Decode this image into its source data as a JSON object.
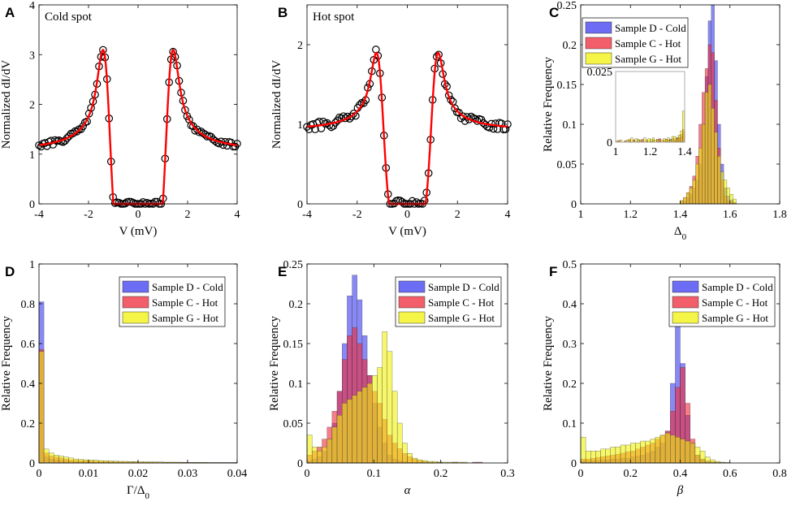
{
  "figure": {
    "colors": {
      "blue": "#3b3bf0",
      "red": "#ee2838",
      "yellow": "#f2f20a",
      "fit": "#ff0000",
      "marker": "#000000"
    }
  },
  "chart_data": [
    {
      "panel": "A",
      "type": "scatter",
      "title": "Cold spot",
      "xlabel": "V (mV)",
      "ylabel": "Normalized dI/dV",
      "xlim": [
        -4,
        4
      ],
      "ylim": [
        0,
        4
      ],
      "xticks": [
        -4,
        -2,
        0,
        2,
        4
      ],
      "yticks": [
        0,
        1,
        2,
        3,
        4
      ],
      "model": {
        "delta": 1.35,
        "gamma": 0.05,
        "background": 1.18,
        "noise": 0.05,
        "peak_height": 3.0,
        "n_points": 100
      },
      "series": [
        {
          "name": "data",
          "marker": "circle"
        },
        {
          "name": "fit",
          "style": "line"
        }
      ]
    },
    {
      "panel": "B",
      "type": "scatter",
      "title": "Hot spot",
      "xlabel": "V (mV)",
      "ylabel": "Normalized dI/dV",
      "xlim": [
        -4,
        4
      ],
      "ylim": [
        0,
        2.5
      ],
      "xticks": [
        -4,
        -2,
        0,
        2,
        4
      ],
      "yticks": [
        0,
        1,
        2
      ],
      "model": {
        "delta": 1.15,
        "gamma": 0.05,
        "background": 0.97,
        "noise": 0.05,
        "peak_height": 1.82,
        "n_points": 100
      },
      "series": [
        {
          "name": "data",
          "marker": "circle"
        },
        {
          "name": "fit",
          "style": "line"
        }
      ]
    },
    {
      "panel": "C",
      "type": "bar",
      "xlabel": "Δ",
      "xlabel_sub": "0",
      "ylabel": "Relative Frequency",
      "xlim": [
        1,
        1.8
      ],
      "ylim": [
        0,
        0.25
      ],
      "xticks": [
        1,
        1.2,
        1.4,
        1.6,
        1.8
      ],
      "yticks": [
        0,
        0.05,
        0.1,
        0.15,
        0.2,
        0.25
      ],
      "bin_start": 1.4,
      "bin_width": 0.0125,
      "series": [
        {
          "name": "Sample D - Cold",
          "color": "blue",
          "values": [
            0.002,
            0.004,
            0.008,
            0.012,
            0.02,
            0.03,
            0.05,
            0.1,
            0.16,
            0.23,
            0.25,
            0.18,
            0.1,
            0.05,
            0.02,
            0.01,
            0.005,
            0.002
          ]
        },
        {
          "name": "Sample C - Hot",
          "color": "red",
          "values": [
            0.004,
            0.008,
            0.014,
            0.022,
            0.035,
            0.06,
            0.1,
            0.14,
            0.17,
            0.2,
            0.19,
            0.13,
            0.07,
            0.03,
            0.01,
            0.004,
            0.002,
            0.001
          ]
        },
        {
          "name": "Sample G - Hot",
          "color": "yellow",
          "values": [
            0.004,
            0.008,
            0.014,
            0.02,
            0.03,
            0.05,
            0.07,
            0.1,
            0.14,
            0.15,
            0.12,
            0.09,
            0.06,
            0.04,
            0.03,
            0.02,
            0.012,
            0.006
          ]
        }
      ],
      "inset": {
        "xlim": [
          1,
          1.4
        ],
        "ylim": [
          0,
          0.025
        ],
        "xticks": [
          1,
          1.2,
          1.4
        ],
        "yticks": [
          0,
          0.025
        ],
        "bin_start": 1.0,
        "bin_width": 0.0125,
        "series": [
          {
            "name": "Sample D - Cold",
            "color": "blue",
            "values": [
              0,
              0,
              0,
              0,
              0,
              0,
              0.0005,
              0,
              0,
              0,
              0.0008,
              0,
              0,
              0,
              0,
              0,
              0.0005,
              0,
              0,
              0.0008,
              0,
              0,
              0,
              0,
              0.0008,
              0.001,
              0,
              0.001,
              0.0012,
              0.0015,
              0.002,
              0.0035
            ]
          },
          {
            "name": "Sample C - Hot",
            "color": "red",
            "values": [
              0,
              0.0006,
              0,
              0,
              0.0005,
              0,
              0.0008,
              0,
              0.0008,
              0,
              0,
              0.0005,
              0.001,
              0,
              0.0005,
              0,
              0,
              0.0008,
              0,
              0.001,
              0.0012,
              0,
              0.0006,
              0.001,
              0.0008,
              0,
              0.0012,
              0.0006,
              0.0015,
              0.0018,
              0.0028,
              0.0045
            ]
          },
          {
            "name": "Sample G - Hot",
            "color": "yellow",
            "values": [
              0.0005,
              0,
              0.0008,
              0,
              0,
              0.0008,
              0.001,
              0.0015,
              0,
              0.0012,
              0.001,
              0.0008,
              0,
              0.0015,
              0.0008,
              0.0012,
              0.001,
              0.0015,
              0.0008,
              0.001,
              0,
              0.0008,
              0.0012,
              0.001,
              0.0015,
              0.0008,
              0.002,
              0.002,
              0.0012,
              0.0025,
              0.004,
              0.011
            ]
          }
        ]
      }
    },
    {
      "panel": "D",
      "type": "bar",
      "xlabel": "Γ/Δ",
      "xlabel_sub": "0",
      "ylabel": "Relative Frequency",
      "xlim": [
        0,
        0.04
      ],
      "ylim": [
        0,
        1
      ],
      "xticks": [
        0,
        0.01,
        0.02,
        0.03,
        0.04
      ],
      "yticks": [
        0,
        0.2,
        0.4,
        0.6,
        0.8,
        1
      ],
      "bin_start": 0,
      "bin_width": 0.001,
      "series": [
        {
          "name": "Sample D - Cold",
          "color": "blue",
          "values": [
            0.81,
            0.03,
            0.02,
            0.015,
            0.012,
            0.01,
            0.008,
            0.007,
            0.006,
            0.005,
            0.005,
            0.004,
            0.004,
            0.003,
            0.003,
            0.003,
            0.002,
            0.002,
            0.002,
            0.002,
            0.002,
            0.002,
            0.002,
            0.001,
            0.001,
            0.001,
            0.001,
            0.001,
            0.001,
            0.001,
            0.001,
            0.001,
            0.001,
            0.001,
            0.001,
            0.001,
            0.001,
            0.001,
            0.001,
            0.001
          ]
        },
        {
          "name": "Sample C - Hot",
          "color": "red",
          "values": [
            0.57,
            0.05,
            0.035,
            0.03,
            0.025,
            0.02,
            0.015,
            0.013,
            0.012,
            0.011,
            0.01,
            0.009,
            0.008,
            0.008,
            0.007,
            0.006,
            0.006,
            0.005,
            0.005,
            0.005,
            0.004,
            0.004,
            0.004,
            0.004,
            0.003,
            0.003,
            0.003,
            0.003,
            0.003,
            0.003,
            0.002,
            0.002,
            0.002,
            0.002,
            0.002,
            0.002,
            0.002,
            0.002,
            0.002,
            0.002
          ]
        },
        {
          "name": "Sample G - Hot",
          "color": "yellow",
          "values": [
            0.56,
            0.07,
            0.05,
            0.04,
            0.035,
            0.03,
            0.025,
            0.02,
            0.018,
            0.016,
            0.015,
            0.014,
            0.012,
            0.011,
            0.01,
            0.009,
            0.008,
            0.008,
            0.007,
            0.007,
            0.006,
            0.006,
            0.005,
            0.005,
            0.005,
            0.004,
            0.004,
            0.004,
            0.004,
            0.003,
            0.003,
            0.003,
            0.003,
            0.003,
            0.002,
            0.002,
            0.002,
            0.002,
            0.002,
            0.002
          ]
        }
      ]
    },
    {
      "panel": "E",
      "type": "bar",
      "xlabel": "α",
      "ylabel": "Relative Frequency",
      "xlim": [
        0,
        0.3
      ],
      "ylim": [
        0,
        0.25
      ],
      "xticks": [
        0,
        0.1,
        0.2,
        0.3
      ],
      "yticks": [
        0,
        0.05,
        0.1,
        0.15,
        0.2,
        0.25
      ],
      "bin_start": 0,
      "bin_width": 0.0075,
      "series": [
        {
          "name": "Sample D - Cold",
          "color": "blue",
          "values": [
            0.003,
            0.005,
            0.008,
            0.015,
            0.03,
            0.05,
            0.09,
            0.15,
            0.21,
            0.236,
            0.205,
            0.16,
            0.11,
            0.075,
            0.045,
            0.025,
            0.01,
            0.005,
            0.003,
            0.002,
            0.001,
            0.001,
            0.001,
            0.001,
            0.001,
            0,
            0,
            0,
            0,
            0,
            0,
            0,
            0,
            0,
            0,
            0,
            0,
            0,
            0,
            0
          ]
        },
        {
          "name": "Sample C - Hot",
          "color": "red",
          "values": [
            0.01,
            0.015,
            0.02,
            0.03,
            0.045,
            0.065,
            0.09,
            0.13,
            0.16,
            0.17,
            0.15,
            0.13,
            0.11,
            0.09,
            0.075,
            0.055,
            0.035,
            0.025,
            0.018,
            0.012,
            0.008,
            0.005,
            0.003,
            0.002,
            0.001,
            0.001,
            0.001,
            0,
            0,
            0.001,
            0,
            0,
            0,
            0.001,
            0.001,
            0,
            0,
            0,
            0,
            0
          ]
        },
        {
          "name": "Sample G - Hot",
          "color": "yellow",
          "values": [
            0.035,
            0.02,
            0.015,
            0.02,
            0.03,
            0.045,
            0.06,
            0.075,
            0.08,
            0.085,
            0.09,
            0.095,
            0.1,
            0.11,
            0.12,
            0.165,
            0.14,
            0.09,
            0.05,
            0.025,
            0.012,
            0.006,
            0.004,
            0.003,
            0.002,
            0.002,
            0.001,
            0.001,
            0.001,
            0.001,
            0.001,
            0.001,
            0,
            0,
            0,
            0,
            0,
            0,
            0,
            0
          ]
        }
      ]
    },
    {
      "panel": "F",
      "type": "bar",
      "xlabel": "β",
      "ylabel": "Relative Frequency",
      "xlim": [
        0,
        0.8
      ],
      "ylim": [
        0,
        0.5
      ],
      "xticks": [
        0,
        0.2,
        0.4,
        0.6,
        0.8
      ],
      "yticks": [
        0,
        0.1,
        0.2,
        0.3,
        0.4,
        0.5
      ],
      "bin_start": 0,
      "bin_width": 0.02,
      "series": [
        {
          "name": "Sample D - Cold",
          "color": "blue",
          "values": [
            0.005,
            0.005,
            0.006,
            0.006,
            0.008,
            0.008,
            0.01,
            0.01,
            0.012,
            0.012,
            0.015,
            0.018,
            0.02,
            0.025,
            0.03,
            0.04,
            0.05,
            0.08,
            0.2,
            0.36,
            0.25,
            0.12,
            0.05,
            0.02,
            0.01,
            0.005,
            0.003,
            0.002,
            0.001,
            0.001,
            0,
            0,
            0,
            0,
            0,
            0,
            0,
            0,
            0,
            0
          ]
        },
        {
          "name": "Sample C - Hot",
          "color": "red",
          "values": [
            0.01,
            0.01,
            0.012,
            0.014,
            0.016,
            0.018,
            0.02,
            0.022,
            0.025,
            0.028,
            0.03,
            0.035,
            0.04,
            0.045,
            0.05,
            0.06,
            0.07,
            0.08,
            0.13,
            0.19,
            0.24,
            0.15,
            0.06,
            0.02,
            0.008,
            0.004,
            0.002,
            0.001,
            0.001,
            0,
            0,
            0,
            0,
            0,
            0,
            0,
            0,
            0,
            0,
            0
          ]
        },
        {
          "name": "Sample G - Hot",
          "color": "yellow",
          "values": [
            0.065,
            0.03,
            0.03,
            0.03,
            0.035,
            0.035,
            0.04,
            0.04,
            0.045,
            0.045,
            0.05,
            0.05,
            0.055,
            0.055,
            0.06,
            0.065,
            0.07,
            0.075,
            0.07,
            0.065,
            0.06,
            0.055,
            0.05,
            0.04,
            0.03,
            0.015,
            0.008,
            0.004,
            0.002,
            0.001,
            0,
            0,
            0,
            0,
            0,
            0,
            0,
            0,
            0,
            0
          ]
        }
      ]
    }
  ]
}
